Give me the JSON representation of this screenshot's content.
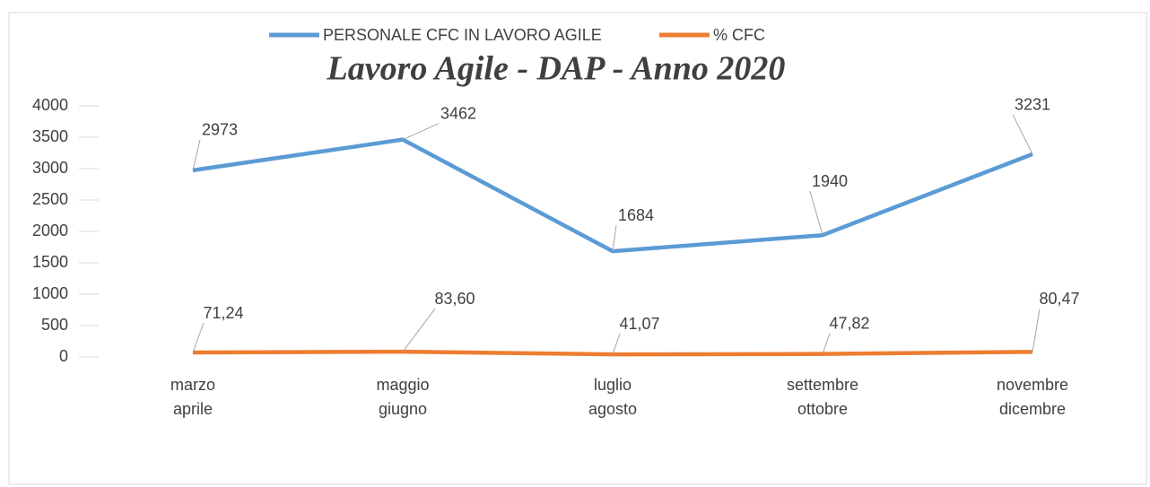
{
  "chart_data": {
    "type": "line",
    "title": "Lavoro Agile - DAP - Anno 2020",
    "categories": [
      [
        "marzo",
        "aprile"
      ],
      [
        "maggio",
        "giugno"
      ],
      [
        "luglio",
        "agosto"
      ],
      [
        "settembre",
        "ottobre"
      ],
      [
        "novembre",
        "dicembre"
      ]
    ],
    "series": [
      {
        "name": "PERSONALE CFC IN LAVORO AGILE",
        "color": "#5b9bd5",
        "values": [
          2973,
          3462,
          1684,
          1940,
          3231
        ]
      },
      {
        "name": "% CFC",
        "color": "#ed7d31",
        "values": [
          71.24,
          83.6,
          41.07,
          47.82,
          80.47
        ],
        "value_labels": [
          "71,24",
          "83,60",
          "41,07",
          "47,82",
          "80,47"
        ]
      }
    ],
    "ylim": [
      0,
      4000
    ],
    "yticks": [
      0,
      500,
      1000,
      1500,
      2000,
      2500,
      3000,
      3500,
      4000
    ],
    "grid": false,
    "legend": "top"
  }
}
